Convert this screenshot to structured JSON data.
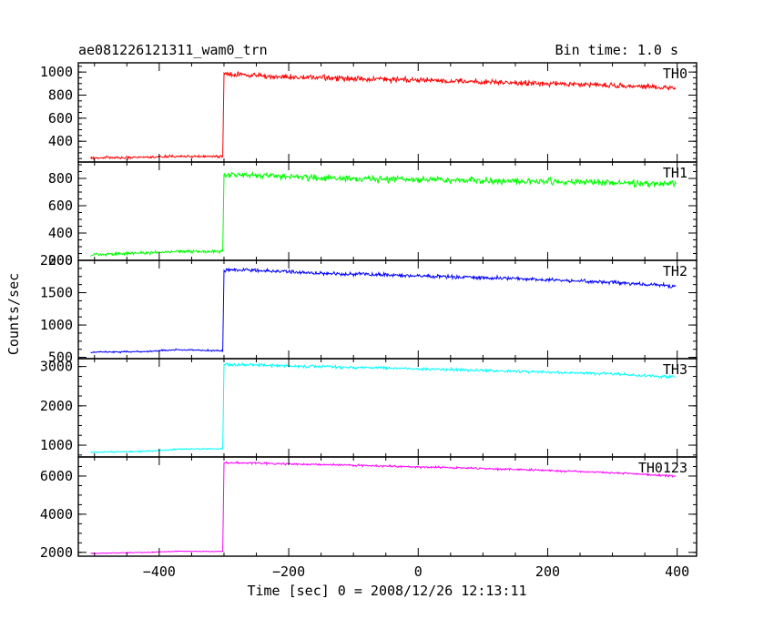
{
  "header": {
    "title": "ae081226121311_wam0_trn",
    "bin_time": "Bin time: 1.0 s"
  },
  "chart_data": {
    "type": "line",
    "xlabel": "Time [sec] 0 = 2008/12/26 12:13:11",
    "ylabel": "Counts/sec",
    "xlim": [
      -525,
      430
    ],
    "x_step_s": 1.0,
    "x_ticks": [
      -400,
      -200,
      0,
      200,
      400
    ],
    "x_tick_labels": [
      "−400",
      "−200",
      "0",
      "200",
      "400"
    ],
    "panels": [
      {
        "name": "TH0",
        "color": "#ff0000",
        "ylim": [
          220,
          1080
        ],
        "y_ticks": [
          400,
          600,
          800,
          1000
        ],
        "y_tick_labels": [
          "400",
          "600",
          "800",
          "1000"
        ],
        "points": [
          [
            -506,
            255
          ],
          [
            -420,
            262
          ],
          [
            -370,
            270
          ],
          [
            -302,
            270
          ],
          [
            -300,
            985
          ],
          [
            -260,
            970
          ],
          [
            -150,
            950
          ],
          [
            0,
            930
          ],
          [
            150,
            905
          ],
          [
            300,
            885
          ],
          [
            398,
            860
          ]
        ],
        "noise": 35
      },
      {
        "name": "TH1",
        "color": "#00ff00",
        "ylim": [
          200,
          920
        ],
        "y_ticks": [
          200,
          400,
          600,
          800
        ],
        "y_tick_labels": [
          "200",
          "400",
          "600",
          "800"
        ],
        "points": [
          [
            -506,
            240
          ],
          [
            -420,
            255
          ],
          [
            -370,
            265
          ],
          [
            -302,
            265
          ],
          [
            -300,
            830
          ],
          [
            -260,
            820
          ],
          [
            -150,
            805
          ],
          [
            0,
            790
          ],
          [
            150,
            780
          ],
          [
            300,
            770
          ],
          [
            398,
            760
          ]
        ],
        "noise": 35
      },
      {
        "name": "TH2",
        "color": "#0000ff",
        "ylim": [
          480,
          2000
        ],
        "y_ticks": [
          500,
          1000,
          1500,
          2000
        ],
        "y_tick_labels": [
          "500",
          "1000",
          "1500",
          "2000"
        ],
        "points": [
          [
            -506,
            580
          ],
          [
            -420,
            590
          ],
          [
            -370,
            620
          ],
          [
            -302,
            600
          ],
          [
            -300,
            1850
          ],
          [
            -260,
            1850
          ],
          [
            -150,
            1800
          ],
          [
            0,
            1760
          ],
          [
            150,
            1720
          ],
          [
            300,
            1660
          ],
          [
            398,
            1600
          ]
        ],
        "noise": 40
      },
      {
        "name": "TH3",
        "color": "#00ffff",
        "ylim": [
          700,
          3200
        ],
        "y_ticks": [
          1000,
          2000,
          3000
        ],
        "y_tick_labels": [
          "1000",
          "2000",
          "3000"
        ],
        "points": [
          [
            -506,
            820
          ],
          [
            -420,
            840
          ],
          [
            -370,
            900
          ],
          [
            -302,
            910
          ],
          [
            -300,
            3050
          ],
          [
            -260,
            3040
          ],
          [
            -150,
            3000
          ],
          [
            0,
            2940
          ],
          [
            150,
            2880
          ],
          [
            300,
            2810
          ],
          [
            398,
            2730
          ]
        ],
        "noise": 55
      },
      {
        "name": "TH0123",
        "color": "#ff00ff",
        "ylim": [
          1800,
          7000
        ],
        "y_ticks": [
          2000,
          4000,
          6000
        ],
        "y_tick_labels": [
          "2000",
          "4000",
          "6000"
        ],
        "points": [
          [
            -506,
            1950
          ],
          [
            -420,
            2000
          ],
          [
            -370,
            2060
          ],
          [
            -302,
            2050
          ],
          [
            -300,
            6700
          ],
          [
            -260,
            6680
          ],
          [
            -150,
            6600
          ],
          [
            0,
            6480
          ],
          [
            150,
            6350
          ],
          [
            300,
            6180
          ],
          [
            398,
            6000
          ]
        ],
        "noise": 75
      }
    ]
  }
}
